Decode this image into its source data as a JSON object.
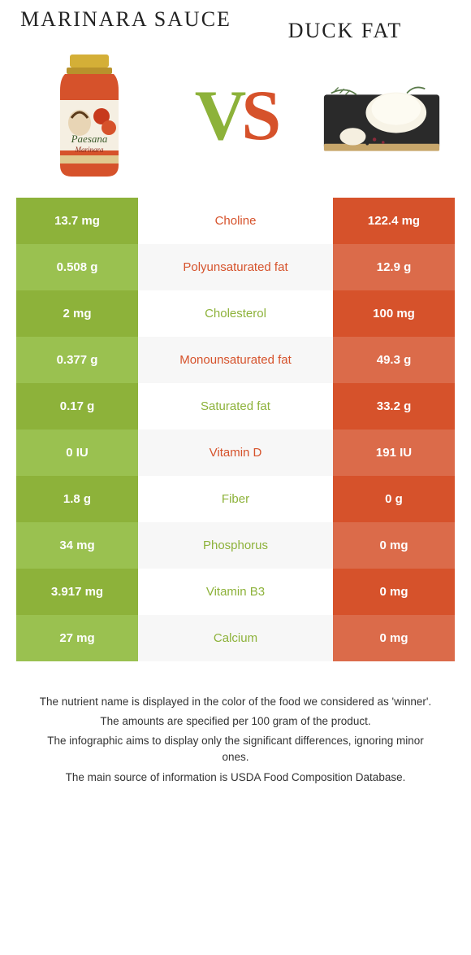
{
  "colors": {
    "left_main": "#8db23a",
    "left_alt": "#9ac150",
    "right_main": "#d6522b",
    "right_alt": "#db6b4a",
    "mid_bg_even": "#ffffff",
    "mid_bg_odd": "#f7f7f7",
    "left_text": "#8db23a",
    "right_text": "#d6522b"
  },
  "food_left": {
    "title": "MARINARA SAUCE"
  },
  "food_right": {
    "title": "DUCK FAT"
  },
  "vs": {
    "v": "V",
    "s": "S"
  },
  "rows": [
    {
      "nutrient": "Choline",
      "left": "13.7 mg",
      "right": "122.4 mg",
      "winner": "right"
    },
    {
      "nutrient": "Polyunsaturated fat",
      "left": "0.508 g",
      "right": "12.9 g",
      "winner": "right"
    },
    {
      "nutrient": "Cholesterol",
      "left": "2 mg",
      "right": "100 mg",
      "winner": "left"
    },
    {
      "nutrient": "Monounsaturated fat",
      "left": "0.377 g",
      "right": "49.3 g",
      "winner": "right"
    },
    {
      "nutrient": "Saturated fat",
      "left": "0.17 g",
      "right": "33.2 g",
      "winner": "left"
    },
    {
      "nutrient": "Vitamin D",
      "left": "0 IU",
      "right": "191 IU",
      "winner": "right"
    },
    {
      "nutrient": "Fiber",
      "left": "1.8 g",
      "right": "0 g",
      "winner": "left"
    },
    {
      "nutrient": "Phosphorus",
      "left": "34 mg",
      "right": "0 mg",
      "winner": "left"
    },
    {
      "nutrient": "Vitamin B3",
      "left": "3.917 mg",
      "right": "0 mg",
      "winner": "left"
    },
    {
      "nutrient": "Calcium",
      "left": "27 mg",
      "right": "0 mg",
      "winner": "left"
    }
  ],
  "footer": {
    "l1": "The nutrient name is displayed in the color of the food we considered as 'winner'.",
    "l2": "The amounts are specified per 100 gram of the product.",
    "l3": "The infographic aims to display only the significant differences, ignoring minor ones.",
    "l4": "The main source of information is USDA Food Composition Database."
  }
}
